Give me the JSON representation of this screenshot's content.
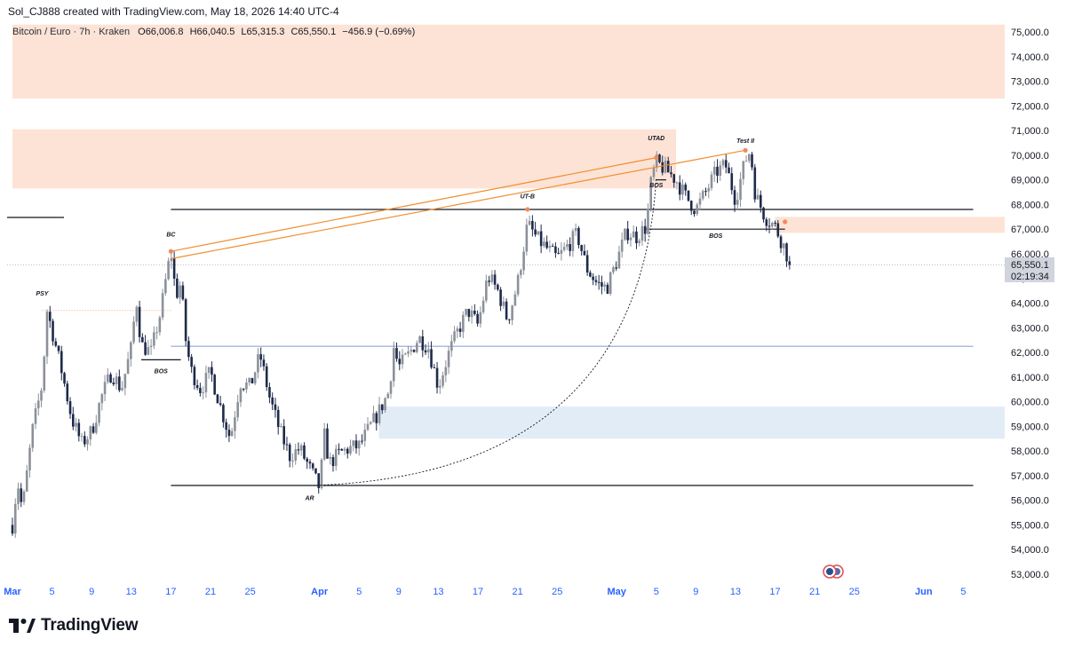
{
  "header": {
    "credit": "Sol_CJ888 created with TradingView.com, May 18, 2026 14:40 UTC-4"
  },
  "symbol": {
    "name": "Bitcoin / Euro · 7h · Kraken",
    "o_label": "O",
    "o": "66,006.8",
    "h_label": "H",
    "h": "66,040.5",
    "l_label": "L",
    "l": "65,315.3",
    "c_label": "C",
    "c": "65,550.1",
    "change": "−456.9 (−0.69%)"
  },
  "price_tag": {
    "price": "65,550.1",
    "countdown": "02:19:34"
  },
  "logo": {
    "text": "TradingView"
  },
  "colors": {
    "up": "#8c9199",
    "down": "#1e2a4a",
    "supply_zone": "#fde3d6",
    "demand_zone": "#e1ecf7",
    "trendline": "#f08d2c",
    "level_line": "#131722",
    "blue_line": "#5b7bb5",
    "axis_text": "#131722",
    "date_text": "#2962ff"
  },
  "chart_data": {
    "type": "candlestick",
    "y_axis": {
      "min": 52500,
      "max": 75500,
      "ticks": [
        "75,000.0",
        "74,000.0",
        "73,000.0",
        "72,000.0",
        "71,000.0",
        "70,000.0",
        "69,000.0",
        "68,000.0",
        "67,000.0",
        "66,000.0",
        "65,000.0",
        "64,000.0",
        "63,000.0",
        "62,000.0",
        "61,000.0",
        "60,000.0",
        "59,000.0",
        "58,000.0",
        "57,000.0",
        "56,000.0",
        "55,000.0",
        "54,000.0",
        "53,000.0"
      ]
    },
    "x_axis": {
      "labels": [
        {
          "text": "Mar",
          "date": "2026-03-01",
          "bold": true
        },
        {
          "text": "5",
          "date": "2026-03-05"
        },
        {
          "text": "9",
          "date": "2026-03-09"
        },
        {
          "text": "13",
          "date": "2026-03-13"
        },
        {
          "text": "17",
          "date": "2026-03-17"
        },
        {
          "text": "21",
          "date": "2026-03-21"
        },
        {
          "text": "25",
          "date": "2026-03-25"
        },
        {
          "text": "Apr",
          "date": "2026-04-01",
          "bold": true
        },
        {
          "text": "5",
          "date": "2026-04-05"
        },
        {
          "text": "9",
          "date": "2026-04-09"
        },
        {
          "text": "13",
          "date": "2026-04-13"
        },
        {
          "text": "17",
          "date": "2026-04-17"
        },
        {
          "text": "21",
          "date": "2026-04-21"
        },
        {
          "text": "25",
          "date": "2026-04-25"
        },
        {
          "text": "May",
          "date": "2026-05-01",
          "bold": true
        },
        {
          "text": "5",
          "date": "2026-05-05"
        },
        {
          "text": "9",
          "date": "2026-05-09"
        },
        {
          "text": "13",
          "date": "2026-05-13"
        },
        {
          "text": "17",
          "date": "2026-05-17"
        },
        {
          "text": "21",
          "date": "2026-05-21"
        },
        {
          "text": "25",
          "date": "2026-05-25"
        },
        {
          "text": "Jun",
          "date": "2026-06-01",
          "bold": true
        },
        {
          "text": "5",
          "date": "2026-06-05"
        }
      ]
    },
    "price_path": [
      [
        "2026-03-01",
        55000
      ],
      [
        "2026-03-01T12",
        56800
      ],
      [
        "2026-03-02",
        55600
      ],
      [
        "2026-03-03",
        58800
      ],
      [
        "2026-03-04",
        60700
      ],
      [
        "2026-03-04T12",
        63700
      ],
      [
        "2026-03-05",
        62900
      ],
      [
        "2026-03-06",
        61200
      ],
      [
        "2026-03-07",
        59300
      ],
      [
        "2026-03-08",
        58300
      ],
      [
        "2026-03-09",
        58800
      ],
      [
        "2026-03-10",
        60200
      ],
      [
        "2026-03-11",
        61200
      ],
      [
        "2026-03-12",
        60500
      ],
      [
        "2026-03-13",
        62200
      ],
      [
        "2026-03-13T12",
        64200
      ],
      [
        "2026-03-14",
        62300
      ],
      [
        "2026-03-15",
        62000
      ],
      [
        "2026-03-16",
        63700
      ],
      [
        "2026-03-16T12",
        65000
      ],
      [
        "2026-03-17",
        66100
      ],
      [
        "2026-03-17T12",
        64300
      ],
      [
        "2026-03-18",
        64800
      ],
      [
        "2026-03-18T12",
        62500
      ],
      [
        "2026-03-19",
        61300
      ],
      [
        "2026-03-20",
        60500
      ],
      [
        "2026-03-21",
        61200
      ],
      [
        "2026-03-22",
        59800
      ],
      [
        "2026-03-23",
        58500
      ],
      [
        "2026-03-24",
        60800
      ],
      [
        "2026-03-25",
        60600
      ],
      [
        "2026-03-26",
        61900
      ],
      [
        "2026-03-27",
        60100
      ],
      [
        "2026-03-28",
        58800
      ],
      [
        "2026-03-29",
        57800
      ],
      [
        "2026-03-30",
        58100
      ],
      [
        "2026-03-31",
        57300
      ],
      [
        "2026-04-01",
        56500
      ],
      [
        "2026-04-01T12",
        58600
      ],
      [
        "2026-04-02",
        57500
      ],
      [
        "2026-04-03",
        57900
      ],
      [
        "2026-04-04",
        58100
      ],
      [
        "2026-04-05",
        58200
      ],
      [
        "2026-04-06",
        58900
      ],
      [
        "2026-04-07",
        59600
      ],
      [
        "2026-04-08",
        60400
      ],
      [
        "2026-04-08T12",
        62200
      ],
      [
        "2026-04-09",
        61400
      ],
      [
        "2026-04-10",
        61900
      ],
      [
        "2026-04-11",
        62600
      ],
      [
        "2026-04-12",
        62200
      ],
      [
        "2026-04-13",
        60600
      ],
      [
        "2026-04-14",
        61900
      ],
      [
        "2026-04-15",
        62900
      ],
      [
        "2026-04-16",
        63700
      ],
      [
        "2026-04-17",
        63100
      ],
      [
        "2026-04-18",
        65100
      ],
      [
        "2026-04-19",
        64500
      ],
      [
        "2026-04-20",
        63300
      ],
      [
        "2026-04-21",
        64800
      ],
      [
        "2026-04-22",
        67200
      ],
      [
        "2026-04-23",
        66600
      ],
      [
        "2026-04-24",
        66200
      ],
      [
        "2026-04-25",
        65800
      ],
      [
        "2026-04-26",
        66300
      ],
      [
        "2026-04-27",
        66800
      ],
      [
        "2026-04-28",
        65400
      ],
      [
        "2026-04-29",
        64800
      ],
      [
        "2026-04-30",
        64600
      ],
      [
        "2026-05-01",
        65700
      ],
      [
        "2026-05-02",
        66900
      ],
      [
        "2026-05-03",
        66700
      ],
      [
        "2026-05-04",
        67100
      ],
      [
        "2026-05-04T12",
        69000
      ],
      [
        "2026-05-05",
        69700
      ],
      [
        "2026-05-06",
        69400
      ],
      [
        "2026-05-07",
        69000
      ],
      [
        "2026-05-08",
        68300
      ],
      [
        "2026-05-09",
        67800
      ],
      [
        "2026-05-10",
        68500
      ],
      [
        "2026-05-11",
        69300
      ],
      [
        "2026-05-12",
        69600
      ],
      [
        "2026-05-13",
        68200
      ],
      [
        "2026-05-14",
        69800
      ],
      [
        "2026-05-14T12",
        70200
      ],
      [
        "2026-05-15",
        68400
      ],
      [
        "2026-05-16",
        67500
      ],
      [
        "2026-05-17",
        67100
      ],
      [
        "2026-05-18",
        66200
      ],
      [
        "2026-05-18T12",
        65550.1
      ]
    ],
    "zones": [
      {
        "kind": "supply",
        "top": 75300,
        "bottom": 72300,
        "from": "2026-03-01",
        "to": "end"
      },
      {
        "kind": "supply",
        "top": 71050,
        "bottom": 68650,
        "from": "2026-03-01",
        "to": "2026-05-07"
      },
      {
        "kind": "supply",
        "top": 67500,
        "bottom": 66850,
        "from": "2026-05-17",
        "to": "end"
      },
      {
        "kind": "demand",
        "top": 59800,
        "bottom": 58500,
        "from": "2026-04-07",
        "to": "end"
      }
    ],
    "levels": [
      {
        "price": 67800,
        "from": "2026-03-17",
        "to": "2026-06-06",
        "color": "level"
      },
      {
        "price": 56600,
        "from": "2026-03-17",
        "to": "2026-06-06",
        "color": "level"
      },
      {
        "price": 62250,
        "from": "2026-03-17",
        "to": "2026-06-06",
        "color": "blue"
      },
      {
        "price": 67000,
        "from": "2026-05-04",
        "to": "2026-05-18",
        "color": "level"
      },
      {
        "price": 61700,
        "from": "2026-03-14",
        "to": "2026-03-18",
        "color": "level"
      },
      {
        "price": 69000,
        "from": "2026-05-05",
        "to": "2026-05-06",
        "color": "level"
      }
    ],
    "trendlines": [
      {
        "from": [
          "2026-03-17",
          66100
        ],
        "to": [
          "2026-05-05",
          69900
        ]
      },
      {
        "from": [
          "2026-03-17",
          65800
        ],
        "to": [
          "2026-05-14",
          70200
        ]
      }
    ],
    "annotations": [
      {
        "text": "PSY",
        "date": "2026-03-04",
        "price": 64300
      },
      {
        "text": "BC",
        "date": "2026-03-17",
        "price": 66700
      },
      {
        "text": "BOS",
        "date": "2026-03-16",
        "price": 61150
      },
      {
        "text": "AR",
        "date": "2026-03-31",
        "price": 56000
      },
      {
        "text": "UT-B",
        "date": "2026-04-22",
        "price": 68250
      },
      {
        "text": "UTAD",
        "date": "2026-05-05",
        "price": 70600
      },
      {
        "text": "BOS",
        "date": "2026-05-05",
        "price": 68700
      },
      {
        "text": "Test II",
        "date": "2026-05-14",
        "price": 70500
      },
      {
        "text": "BOS",
        "date": "2026-05-11",
        "price": 66650
      }
    ],
    "markers": [
      {
        "date": "2026-03-17",
        "price": 66100
      },
      {
        "date": "2026-04-22",
        "price": 67800
      },
      {
        "date": "2026-05-05",
        "price": 69900
      },
      {
        "date": "2026-05-14",
        "price": 70200
      },
      {
        "date": "2026-05-18",
        "price": 67300
      }
    ],
    "dotted_arc": {
      "from": [
        "2026-03-31",
        56600
      ],
      "to": [
        "2026-05-05",
        69100
      ]
    },
    "stray_line": {
      "price": 67800,
      "from_edge": true
    },
    "legend_placement": "top-left"
  }
}
